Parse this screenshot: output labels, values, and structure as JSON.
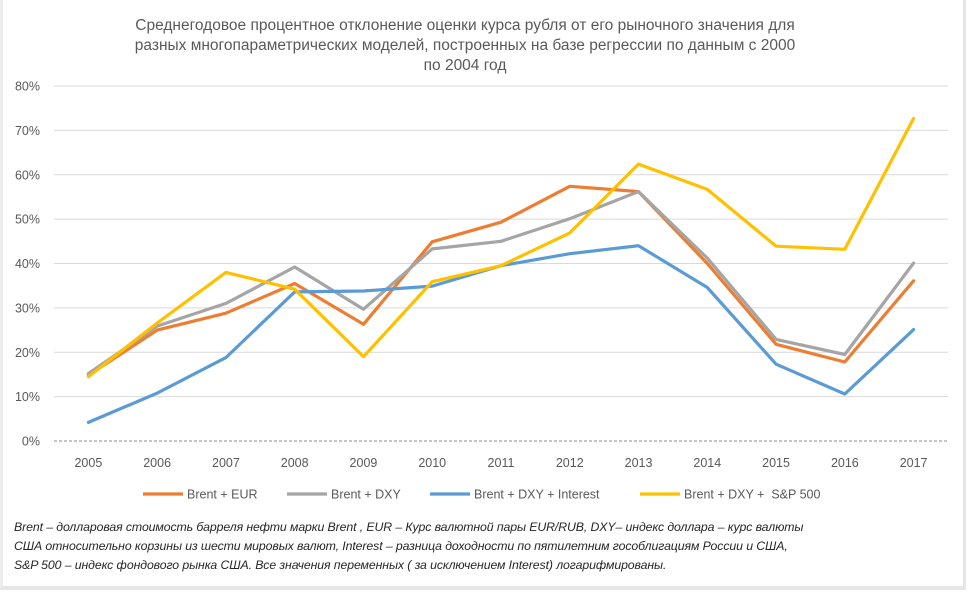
{
  "chart_data": {
    "type": "line",
    "title": "Среднегодовое процентное отклонение оценки курса рубля от его рыночного значения для разных многопараметрических моделей, построенных на базе регрессии по данным с 2000 по 2004 год",
    "title_lines": [
      "Среднегодовое процентное отклонение оценки курса рубля от его рыночного значения для",
      "разных многопараметрических моделей, построенных на базе регрессии по данным с 2000",
      "по 2004 год"
    ],
    "xlabel": "",
    "ylabel": "",
    "categories": [
      "2005",
      "2006",
      "2007",
      "2008",
      "2009",
      "2010",
      "2011",
      "2012",
      "2013",
      "2014",
      "2015",
      "2016",
      "2017"
    ],
    "ylim": [
      0,
      80
    ],
    "yticks": [
      0,
      10,
      20,
      30,
      40,
      50,
      60,
      70,
      80
    ],
    "ytick_labels": [
      "0%",
      "10%",
      "20%",
      "30%",
      "40%",
      "50%",
      "60%",
      "70%",
      "80%"
    ],
    "grid": true,
    "legend_position": "bottom",
    "series": [
      {
        "name": "Brent + EUR",
        "color": "#ed7d31",
        "values": [
          14.8,
          25.0,
          28.8,
          35.5,
          26.3,
          44.9,
          49.3,
          57.4,
          56.2,
          40.0,
          21.8,
          17.8,
          36.1
        ]
      },
      {
        "name": "Brent + DXY",
        "color": "#a5a5a5",
        "values": [
          15.2,
          25.9,
          31.0,
          39.2,
          29.7,
          43.3,
          45.0,
          50.1,
          56.2,
          41.2,
          22.9,
          19.5,
          40.1
        ]
      },
      {
        "name": "Brent + DXY + Interest",
        "color": "#5b9bd5",
        "values": [
          4.2,
          10.8,
          18.8,
          33.6,
          33.8,
          34.9,
          39.5,
          42.2,
          44.0,
          34.6,
          17.3,
          10.6,
          25.1
        ]
      },
      {
        "name": "Brent + DXY +  S&P 500",
        "color": "#ffc000",
        "values": [
          14.5,
          26.6,
          38.0,
          34.2,
          19.0,
          35.9,
          39.5,
          46.9,
          62.4,
          56.7,
          43.9,
          43.2,
          72.7
        ]
      }
    ]
  },
  "footnote": {
    "lines": [
      "Brent – долларовая стоимость барреля нефти марки Brent , EUR – Курс валютной пары EUR/RUB,  DXY– индекс доллара – курс валюты",
      "США относительно  корзины из шести мировых валют, Interest – разница доходности по  пятилетним гособлигациям России и США,",
      "S&P 500 – индекс фондового рынка США.  Все значения переменных ( за исключением Interest) логарифмированы."
    ]
  }
}
